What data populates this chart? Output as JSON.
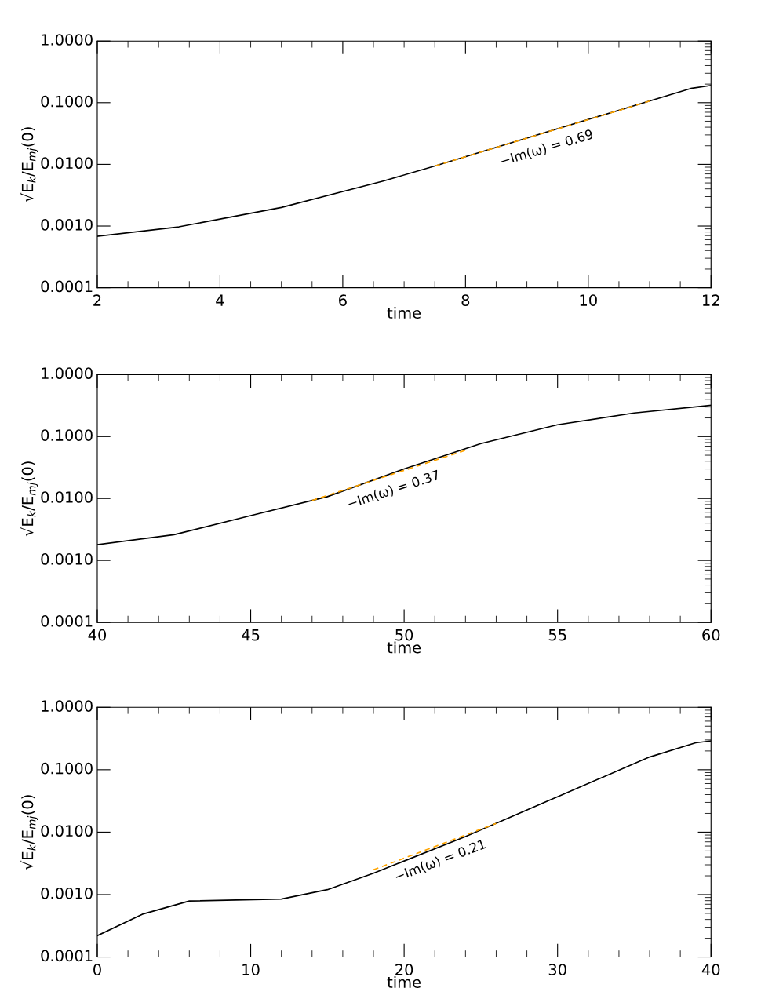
{
  "chart_data": [
    {
      "type": "line",
      "xlabel": "time",
      "ylabel": "√E$_{k}$/E$_{mj}$(0)",
      "log": "y",
      "xlim": [
        2,
        12
      ],
      "xticks": [
        2,
        4,
        6,
        8,
        10,
        12
      ],
      "ylim": [
        0.0001,
        1
      ],
      "yticks": [
        {
          "value": 0.0001,
          "label": "0.0001"
        },
        {
          "value": 0.001,
          "label": "0.0010"
        },
        {
          "value": 0.01,
          "label": "0.0100"
        },
        {
          "value": 0.1,
          "label": "0.1000"
        },
        {
          "value": 1,
          "label": "1.0000"
        }
      ],
      "grid": false,
      "legend": false,
      "marker": "none",
      "series": [
        {
          "color": "#000000",
          "line_style": "solid",
          "x": [
            2,
            3.33,
            5,
            6.67,
            7.5,
            11.67,
            12
          ],
          "values": [
            0.00068,
            0.00097,
            0.002,
            0.0054,
            0.0094,
            0.17,
            0.19
          ]
        },
        {
          "color": "#ffa500",
          "line_style": "dashed",
          "x": [
            7.5,
            11
          ],
          "values": [
            0.0094,
            0.106
          ]
        }
      ],
      "annotations": [
        "−Im(ω) = 0.69"
      ]
    },
    {
      "type": "line",
      "xlabel": "time",
      "ylabel": "√E$_{k}$/E$_{mj}$(0)",
      "log": "y",
      "xlim": [
        40,
        60
      ],
      "xticks": [
        40,
        45,
        50,
        55,
        60
      ],
      "ylim": [
        0.0001,
        1
      ],
      "yticks": [
        {
          "value": 0.0001,
          "label": "0.0001"
        },
        {
          "value": 0.001,
          "label": "0.0010"
        },
        {
          "value": 0.01,
          "label": "0.0100"
        },
        {
          "value": 0.1,
          "label": "0.1000"
        },
        {
          "value": 1,
          "label": "1.0000"
        }
      ],
      "grid": false,
      "legend": false,
      "marker": "none",
      "series": [
        {
          "color": "#000000",
          "line_style": "solid",
          "x": [
            40,
            42.5,
            45,
            47.5,
            50,
            52.5,
            55,
            57.5,
            60
          ],
          "values": [
            0.0018,
            0.0026,
            0.0053,
            0.0107,
            0.03,
            0.077,
            0.155,
            0.24,
            0.32
          ]
        },
        {
          "color": "#ffa500",
          "line_style": "dashed",
          "x": [
            47,
            52
          ],
          "values": [
            0.0093,
            0.06
          ]
        }
      ],
      "annotations": [
        "−Im(ω) = 0.37"
      ]
    },
    {
      "type": "line",
      "xlabel": "time",
      "ylabel": "√E$_{k}$/E$_{mj}$(0)",
      "log": "y",
      "xlim": [
        0,
        40
      ],
      "xticks": [
        0,
        10,
        20,
        30,
        40
      ],
      "ylim": [
        0.0001,
        1
      ],
      "yticks": [
        {
          "value": 0.0001,
          "label": "0.0001"
        },
        {
          "value": 0.001,
          "label": "0.0010"
        },
        {
          "value": 0.01,
          "label": "0.0100"
        },
        {
          "value": 0.1,
          "label": "0.1000"
        },
        {
          "value": 1,
          "label": "1.0000"
        }
      ],
      "grid": false,
      "legend": false,
      "marker": "none",
      "series": [
        {
          "color": "#000000",
          "line_style": "solid",
          "x": [
            0,
            3,
            6,
            12,
            15,
            18,
            24,
            30,
            36,
            39,
            40
          ],
          "values": [
            0.00022,
            0.00049,
            0.00079,
            0.00085,
            0.0012,
            0.0022,
            0.0085,
            0.037,
            0.16,
            0.27,
            0.29
          ]
        },
        {
          "color": "#ffa500",
          "line_style": "dashed",
          "x": [
            18,
            26
          ],
          "values": [
            0.0025,
            0.0138
          ]
        }
      ],
      "annotations": [
        "−Im(ω) = 0.21"
      ]
    }
  ]
}
